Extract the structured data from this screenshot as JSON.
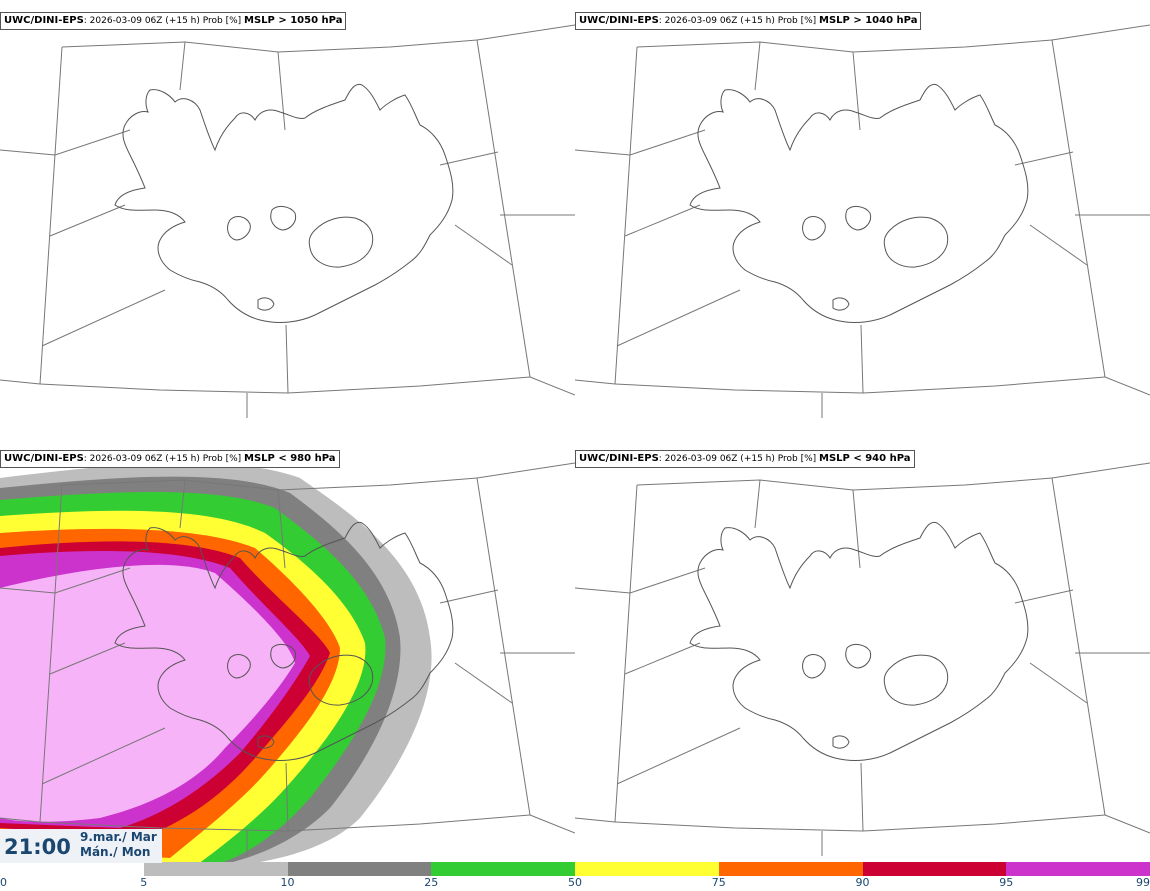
{
  "panels": [
    {
      "model": "UWC/DINI-EPS",
      "run": ": 2026-03-09 06Z (+15 h) Prob [%] ",
      "field": "MSLP > 1050 hPa"
    },
    {
      "model": "UWC/DINI-EPS",
      "run": ": 2026-03-09 06Z (+15 h) Prob [%] ",
      "field": "MSLP > 1040 hPa"
    },
    {
      "model": "UWC/DINI-EPS",
      "run": ": 2026-03-09 06Z (+15 h) Prob [%] ",
      "field": "MSLP < 980 hPa"
    },
    {
      "model": "UWC/DINI-EPS",
      "run": ": 2026-03-09 06Z (+15 h) Prob [%] ",
      "field": "MSLP < 940 hPa"
    }
  ],
  "valid_time": {
    "clock": "21:00",
    "date_line1": "9.mar./ Mar",
    "date_line2": "Mán./ Mon"
  },
  "colorbar": {
    "labels": [
      "0",
      "5",
      "10",
      "25",
      "50",
      "75",
      "90",
      "95",
      "99"
    ],
    "colors": [
      "#ffffff",
      "#bdbdbd",
      "#808080",
      "#33cc33",
      "#ffff33",
      "#ff6600",
      "#cc0033",
      "#cc33cc",
      "#f7b3f7"
    ]
  }
}
